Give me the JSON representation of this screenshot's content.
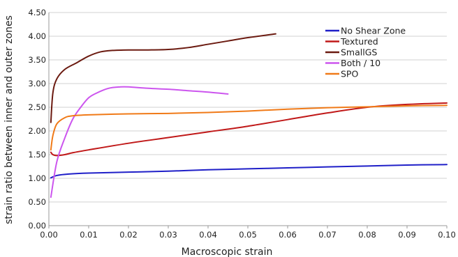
{
  "chart_data": {
    "type": "line",
    "title": "",
    "xlabel": "Macroscopic strain",
    "ylabel": "strain ratio between inner and outer zones",
    "xlim": [
      0,
      0.1
    ],
    "ylim": [
      0,
      4.5
    ],
    "x_ticks": [
      "0.00",
      "0.01",
      "0.02",
      "0.03",
      "0.04",
      "0.05",
      "0.06",
      "0.07",
      "0.08",
      "0.09",
      "0.10"
    ],
    "y_ticks": [
      "0.00",
      "0.50",
      "1.00",
      "1.50",
      "2.00",
      "2.50",
      "3.00",
      "3.50",
      "4.00",
      "4.50"
    ],
    "grid": "horizontal",
    "legend_position": "top-right",
    "series": [
      {
        "name": "No Shear Zone",
        "color": "#1f1fc8",
        "x": [
          0.0005,
          0.002,
          0.005,
          0.01,
          0.02,
          0.03,
          0.04,
          0.05,
          0.06,
          0.07,
          0.08,
          0.09,
          0.1
        ],
        "y": [
          1.01,
          1.06,
          1.09,
          1.11,
          1.13,
          1.15,
          1.18,
          1.2,
          1.22,
          1.24,
          1.26,
          1.28,
          1.29
        ]
      },
      {
        "name": "Textured",
        "color": "#c01818",
        "x": [
          0.0005,
          0.001,
          0.002,
          0.004,
          0.006,
          0.01,
          0.02,
          0.03,
          0.04,
          0.05,
          0.06,
          0.07,
          0.08,
          0.09,
          0.1
        ],
        "y": [
          1.55,
          1.5,
          1.48,
          1.5,
          1.54,
          1.6,
          1.74,
          1.86,
          1.98,
          2.1,
          2.24,
          2.38,
          2.5,
          2.56,
          2.59
        ]
      },
      {
        "name": "SmallGS",
        "color": "#6b1a10",
        "x": [
          0.0005,
          0.001,
          0.002,
          0.004,
          0.007,
          0.01,
          0.013,
          0.016,
          0.02,
          0.025,
          0.03,
          0.035,
          0.04,
          0.045,
          0.05,
          0.057
        ],
        "y": [
          2.18,
          2.8,
          3.1,
          3.3,
          3.44,
          3.58,
          3.67,
          3.7,
          3.71,
          3.71,
          3.72,
          3.76,
          3.83,
          3.9,
          3.97,
          4.05
        ]
      },
      {
        "name": "Both / 10",
        "color": "#cc55ee",
        "x": [
          0.0005,
          0.002,
          0.004,
          0.006,
          0.008,
          0.01,
          0.012,
          0.015,
          0.018,
          0.02,
          0.025,
          0.03,
          0.035,
          0.04,
          0.045
        ],
        "y": [
          0.6,
          1.35,
          1.85,
          2.25,
          2.5,
          2.7,
          2.8,
          2.9,
          2.93,
          2.93,
          2.9,
          2.88,
          2.85,
          2.82,
          2.78
        ]
      },
      {
        "name": "SPO",
        "color": "#f07a18",
        "x": [
          0.0005,
          0.001,
          0.002,
          0.004,
          0.006,
          0.01,
          0.02,
          0.03,
          0.04,
          0.05,
          0.06,
          0.07,
          0.08,
          0.09,
          0.1
        ],
        "y": [
          1.6,
          1.9,
          2.15,
          2.28,
          2.32,
          2.34,
          2.36,
          2.37,
          2.39,
          2.42,
          2.46,
          2.49,
          2.51,
          2.53,
          2.54
        ]
      }
    ]
  }
}
